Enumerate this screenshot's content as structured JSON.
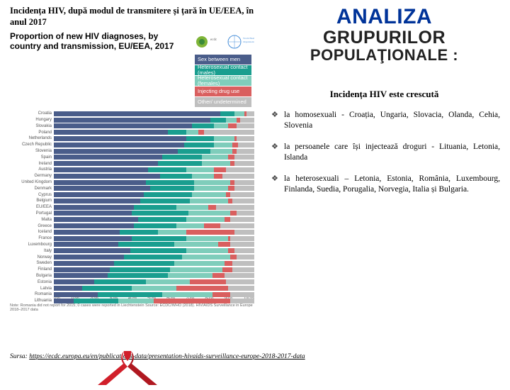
{
  "left": {
    "title": "Incidența HIV, după modul de transmitere și țară în UE/EEA, în anul 2017",
    "chartHeader": "Proportion of new HIV diagnoses, by country and transmission, EU/EEA, 2017",
    "legend": [
      {
        "label": "Sex between men",
        "color": "#4a5d8a"
      },
      {
        "label": "Heterosexual contact (males)",
        "color": "#1a9e8f"
      },
      {
        "label": "Heterosexual contact (females)",
        "color": "#7fcdbb"
      },
      {
        "label": "Injecting drug use",
        "color": "#d95f5f"
      },
      {
        "label": "Other/ undetermined",
        "color": "#bfbfbf"
      }
    ],
    "countries": [
      {
        "name": "Croatia",
        "segs": [
          83,
          7,
          5,
          1,
          4
        ]
      },
      {
        "name": "Hungary",
        "segs": [
          78,
          8,
          5,
          2,
          7
        ]
      },
      {
        "name": "Slovakia",
        "segs": [
          69,
          11,
          7,
          4,
          9
        ]
      },
      {
        "name": "Poland",
        "segs": [
          57,
          9,
          6,
          3,
          25
        ]
      },
      {
        "name": "Netherlands",
        "segs": [
          66,
          14,
          10,
          1,
          9
        ]
      },
      {
        "name": "Czech Republic",
        "segs": [
          65,
          15,
          9,
          3,
          8
        ]
      },
      {
        "name": "Slovenia",
        "segs": [
          62,
          16,
          11,
          2,
          9
        ]
      },
      {
        "name": "Spain",
        "segs": [
          54,
          20,
          13,
          3,
          10
        ]
      },
      {
        "name": "Ireland",
        "segs": [
          52,
          22,
          14,
          2,
          10
        ]
      },
      {
        "name": "Austria",
        "segs": [
          47,
          19,
          14,
          6,
          14
        ]
      },
      {
        "name": "Germany",
        "segs": [
          53,
          16,
          11,
          4,
          16
        ]
      },
      {
        "name": "United Kingdom",
        "segs": [
          46,
          24,
          18,
          2,
          10
        ]
      },
      {
        "name": "Denmark",
        "segs": [
          48,
          22,
          17,
          3,
          10
        ]
      },
      {
        "name": "Cyprus",
        "segs": [
          45,
          24,
          17,
          2,
          12
        ]
      },
      {
        "name": "Belgium",
        "segs": [
          43,
          25,
          19,
          2,
          11
        ]
      },
      {
        "name": "EU/EEA",
        "segs": [
          40,
          21,
          16,
          4,
          19
        ]
      },
      {
        "name": "Portugal",
        "segs": [
          39,
          28,
          21,
          3,
          9
        ]
      },
      {
        "name": "Malta",
        "segs": [
          42,
          24,
          19,
          3,
          12
        ]
      },
      {
        "name": "Greece",
        "segs": [
          40,
          21,
          14,
          8,
          17
        ]
      },
      {
        "name": "Iceland",
        "segs": [
          33,
          19,
          14,
          24,
          10
        ]
      },
      {
        "name": "France",
        "segs": [
          39,
          27,
          21,
          1,
          12
        ]
      },
      {
        "name": "Luxembourg",
        "segs": [
          32,
          28,
          22,
          6,
          12
        ]
      },
      {
        "name": "Italy",
        "segs": [
          38,
          28,
          21,
          3,
          10
        ]
      },
      {
        "name": "Norway",
        "segs": [
          35,
          29,
          24,
          3,
          9
        ]
      },
      {
        "name": "Sweden",
        "segs": [
          30,
          30,
          25,
          4,
          11
        ]
      },
      {
        "name": "Finland",
        "segs": [
          28,
          30,
          26,
          5,
          11
        ]
      },
      {
        "name": "Bulgaria",
        "segs": [
          27,
          30,
          22,
          6,
          15
        ]
      },
      {
        "name": "Estonia",
        "segs": [
          20,
          26,
          22,
          18,
          14
        ]
      },
      {
        "name": "Latvia",
        "segs": [
          14,
          25,
          22,
          26,
          13
        ]
      },
      {
        "name": "Romania",
        "segs": [
          22,
          32,
          25,
          9,
          12
        ]
      },
      {
        "name": "Lithuania",
        "segs": [
          10,
          22,
          18,
          38,
          12
        ]
      }
    ],
    "axisTicks": [
      "0%",
      "10%",
      "20%",
      "30%",
      "40%",
      "50%",
      "60%",
      "70%",
      "80%",
      "90%",
      "100%"
    ],
    "note": "Note: Romania did not report for 2015; 0 cases were reported in Liechtenstein\nSource: ECDC/WHO (2018). HIV/AIDS Surveillance in Europe 2018–2017 data"
  },
  "right": {
    "titleL1": "ANALIZA",
    "titleL2": "GRUPURILOR",
    "titleL3": "POPULAŢIONALE :",
    "subheading": "Incidența HIV este crescută",
    "bullets": [
      "la homosexuali - Croația, Ungaria, Slovacia, Olanda, Cehia, Slovenia",
      "la persoanele care își injectează droguri - Lituania, Letonia, Islanda",
      "la heterosexuali – Letonia, Estonia, România, Luxembourg, Finlanda, Suedia, Porugalia, Norvegia, Italia și Bulgaria."
    ]
  },
  "source": {
    "label": "Sursa:",
    "url": "https://ecdc.europa.eu/en/publications-data/presentation-hivaids-surveillance-europe-2018-2017-data"
  },
  "colors": {
    "accent": "#003399",
    "ribbon": "#d11f2a"
  }
}
